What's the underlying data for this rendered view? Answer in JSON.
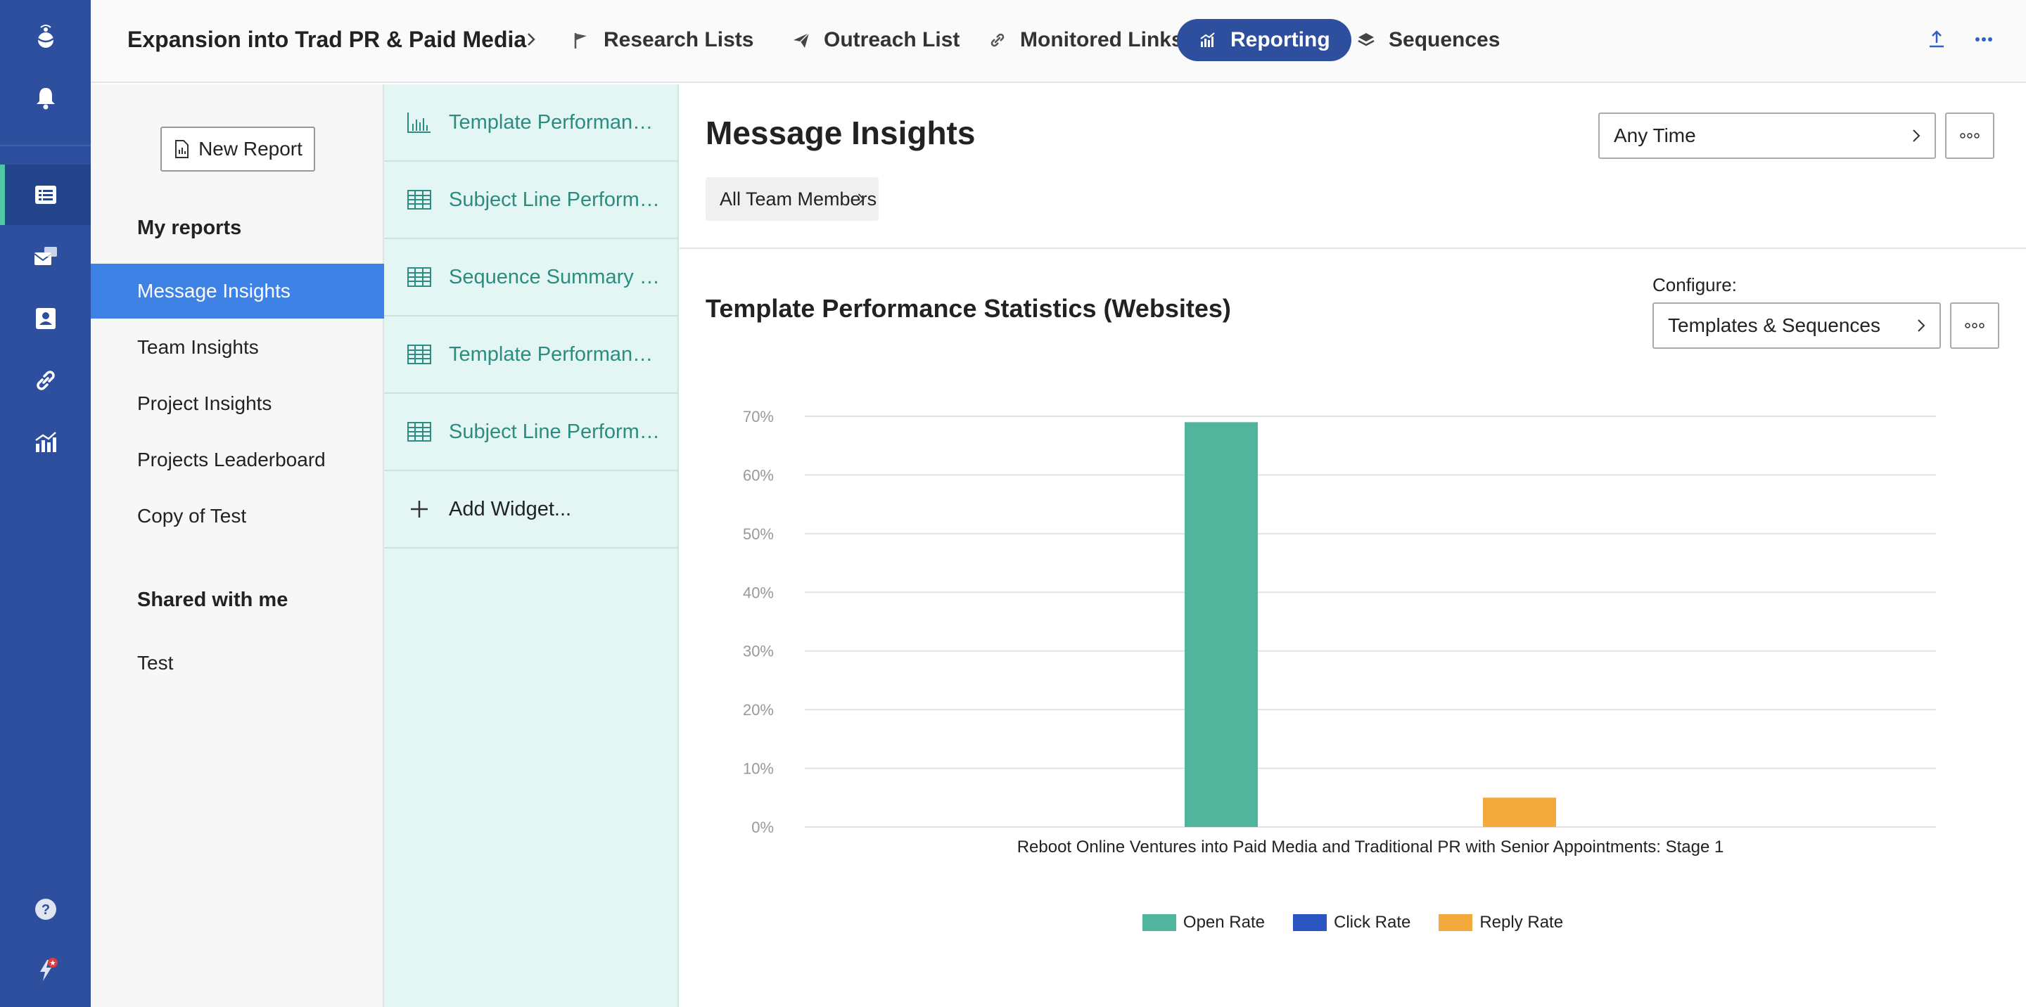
{
  "project": {
    "title": "Expansion into Trad PR & Paid Media"
  },
  "tabs": [
    {
      "label": "Research Lists",
      "icon": "flag-icon"
    },
    {
      "label": "Outreach List",
      "icon": "paper-plane-icon"
    },
    {
      "label": "Monitored Links",
      "icon": "link-icon"
    },
    {
      "label": "Reporting",
      "icon": "bar-chart-icon",
      "active": true
    },
    {
      "label": "Sequences",
      "icon": "layers-icon"
    }
  ],
  "reports": {
    "new_report_label": "New Report",
    "my_reports_heading": "My reports",
    "my_reports": [
      "Message Insights",
      "Team Insights",
      "Project Insights",
      "Projects Leaderboard",
      "Copy of Test"
    ],
    "active_report": "Message Insights",
    "shared_heading": "Shared with me",
    "shared": [
      "Test"
    ]
  },
  "widgets": {
    "items": [
      {
        "label": "Template Performance Statistics (Websites)",
        "icon": "bar-chart-icon"
      },
      {
        "label": "Subject Line Performance",
        "icon": "table-icon"
      },
      {
        "label": "Sequence Summary Statistics",
        "icon": "table-icon"
      },
      {
        "label": "Template Performance Statistics",
        "icon": "table-icon"
      },
      {
        "label": "Subject Line Performance",
        "icon": "table-icon"
      }
    ],
    "add_label": "Add Widget..."
  },
  "main": {
    "title": "Message Insights",
    "time_filter": "Any Time",
    "team_filter": "All Team Members",
    "widget_title": "Template Performance Statistics (Websites)",
    "configure_label": "Configure:",
    "configure_value": "Templates & Sequences"
  },
  "chart_data": {
    "type": "bar",
    "title": "Template Performance Statistics (Websites)",
    "categories": [
      "Reboot Online Ventures into Paid Media and Traditional PR with Senior Appointments: Stage 1"
    ],
    "series": [
      {
        "name": "Open Rate",
        "color": "#52b59b",
        "values": [
          69
        ]
      },
      {
        "name": "Click Rate",
        "color": "#2a55c2",
        "values": [
          0
        ]
      },
      {
        "name": "Reply Rate",
        "color": "#f3a93b",
        "values": [
          5
        ]
      }
    ],
    "ylim": [
      0,
      70
    ],
    "yticks": [
      "0%",
      "10%",
      "20%",
      "30%",
      "40%",
      "50%",
      "60%",
      "70%"
    ],
    "grid": true,
    "legend": "bottom"
  }
}
